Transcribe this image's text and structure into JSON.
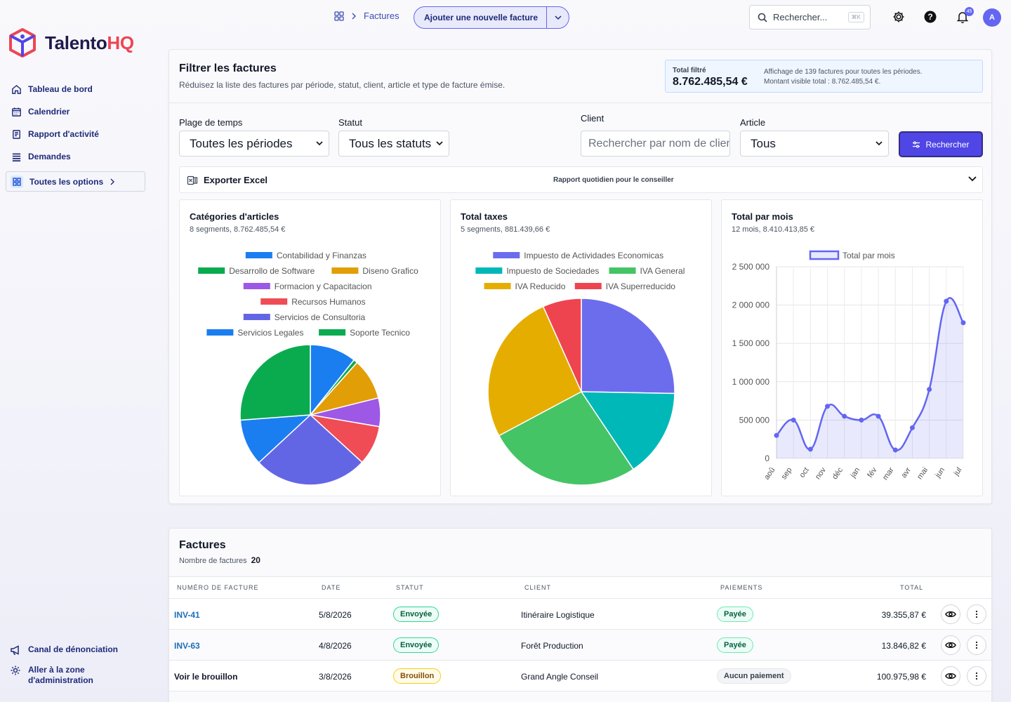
{
  "brand": {
    "name_main": "Talento",
    "name_accent": "HQ"
  },
  "sidebar": {
    "items": [
      {
        "label": "Tableau de bord",
        "icon": "home-icon"
      },
      {
        "label": "Calendrier",
        "icon": "calendar-icon"
      },
      {
        "label": "Rapport d'activité",
        "icon": "report-icon"
      },
      {
        "label": "Demandes",
        "icon": "list-icon"
      }
    ],
    "all_options": "Toutes les options",
    "bottom": [
      {
        "label": "Canal de dénonciation",
        "icon": "megaphone-icon"
      },
      {
        "label": "Aller à la zone d'administration",
        "icon": "gear-icon"
      }
    ]
  },
  "header": {
    "breadcrumb": "Factures",
    "add_button": "Ajouter une nouvelle facture",
    "search_placeholder": "Rechercher...",
    "search_shortcut": "⌘K",
    "notification_count": "45",
    "avatar_initial": "A"
  },
  "filter": {
    "title": "Filtrer les factures",
    "subtitle": "Réduisez la liste des factures par période, statut, client, article et type de facture émise.",
    "total_label": "Total filtré",
    "total_value": "8.762.485,54 €",
    "total_info_1": "Affichage de 139 factures pour toutes les périodes.",
    "total_info_2": "Montant visible total : 8.762.485,54 €.",
    "time_label": "Plage de temps",
    "time_value": "Toutes les périodes",
    "status_label": "Statut",
    "status_value": "Tous les statuts",
    "client_label": "Client",
    "client_placeholder": "Rechercher par nom de client",
    "article_label": "Article",
    "article_value": "Tous",
    "search_button": "Rechercher",
    "export_label": "Exporter Excel",
    "export_report": "Rapport quotidien pour le conseiller"
  },
  "charts": {
    "categories": {
      "title": "Catégories d'articles",
      "subtitle": "8 segments, 8.762.485,54 €"
    },
    "taxes": {
      "title": "Total taxes",
      "subtitle": "5 segments, 881.439,66 €"
    },
    "monthly": {
      "title": "Total par mois",
      "subtitle": "12 mois, 8.410.413,85 €"
    }
  },
  "chart_data": [
    {
      "type": "pie",
      "categories": [
        "Contabilidad y Finanzas",
        "Desarrollo de Software",
        "Diseno Grafico",
        "Formacion y Capacitacion",
        "Recursos Humanos",
        "Servicios de Consultoria",
        "Servicios Legales",
        "Soporte Tecnico"
      ],
      "values": [
        10.7,
        0.9,
        9.5,
        6.6,
        9.1,
        26.3,
        10.7,
        26.2
      ],
      "colors": [
        "#1a7ef0",
        "#0aab4f",
        "#e29e07",
        "#9d58e5",
        "#ef4c55",
        "#6366e4",
        "#1a7ef0",
        "#0aab4f"
      ]
    },
    {
      "type": "pie",
      "categories": [
        "Impuesto de Actividades Economicas",
        "Impuesto de Sociedades",
        "IVA General",
        "IVA Reducido",
        "IVA Superreducido"
      ],
      "values": [
        25.3,
        15.3,
        26.6,
        26.1,
        6.7
      ],
      "colors": [
        "#6c6ded",
        "#00b8b8",
        "#45c465",
        "#e5ad00",
        "#ee4450"
      ]
    },
    {
      "type": "area",
      "series": [
        {
          "name": "Total par mois",
          "values": [
            300000,
            500000,
            120000,
            680000,
            550000,
            500000,
            550000,
            110000,
            400000,
            900000,
            2050000,
            1770000
          ]
        }
      ],
      "x": [
        "aoû",
        "sep",
        "oct",
        "nov",
        "déc",
        "jan",
        "fév",
        "mar",
        "avr",
        "mai",
        "jun",
        "jul"
      ],
      "y_ticks": [
        "0",
        "500 000",
        "1 000 000",
        "1 500 000",
        "2 000 000",
        "2 500 000"
      ],
      "ylim": [
        0,
        2500000
      ],
      "color": "#6366f1"
    }
  ],
  "invoices": {
    "title": "Factures",
    "count_label": "Nombre de factures",
    "count": "20",
    "columns": [
      "NUMÉRO DE FACTURE",
      "DATE",
      "STATUT",
      "CLIENT",
      "PAIEMENTS",
      "TOTAL"
    ],
    "rows": [
      {
        "number": "INV-41",
        "date": "5/8/2026",
        "status": "Envoyée",
        "client": "Itinéraire Logistique",
        "payment": "Payée",
        "total": "39.355,87 €"
      },
      {
        "number": "INV-63",
        "date": "4/8/2026",
        "status": "Envoyée",
        "client": "Forêt Production",
        "payment": "Payée",
        "total": "13.846,82 €"
      },
      {
        "number": "Voir le brouillon",
        "date": "3/8/2026",
        "status": "Brouillon",
        "client": "Grand Angle Conseil",
        "payment": "Aucun paiement",
        "total": "100.975,98 €"
      }
    ]
  }
}
